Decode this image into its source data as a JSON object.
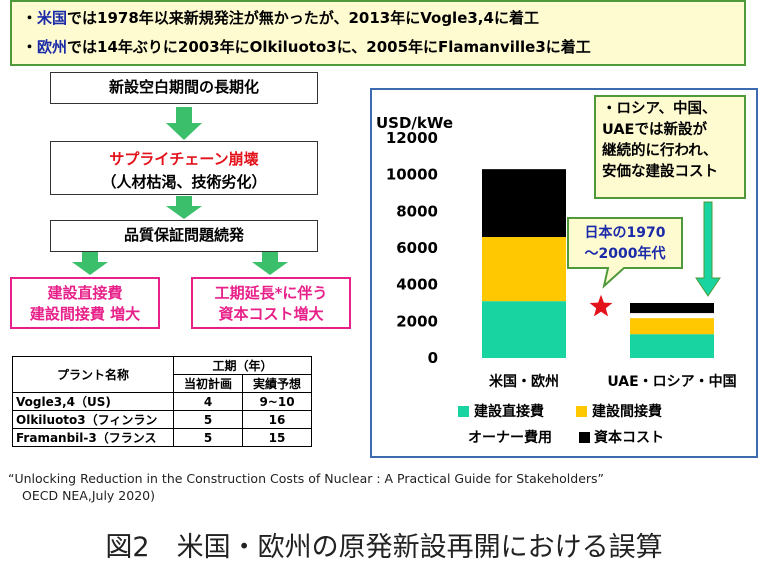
{
  "top_box": {
    "line1": {
      "pre": "・",
      "kw": "米国",
      "rest": "では1978年以来新規発注が無かったが、2013年にVogle3,4に着工"
    },
    "line2": {
      "pre": "・",
      "kw": "欧州",
      "rest": "では14年ぶりに2003年にOlkiluoto3に、2005年にFlamanville3に着工"
    }
  },
  "flow": {
    "step1": "新設空白期間の長期化",
    "step2_red": "サプライチェーン崩壊",
    "step2_sub": "（人材枯渇、技術劣化）",
    "step3": "品質保証問題続発",
    "left_line1": "建設直接費",
    "left_line2": "建設間接費 増大",
    "right_line1": "工期延長*に伴う",
    "right_line2": "資本コスト増大"
  },
  "table": {
    "col_plant": "プラント名称",
    "col_period": "工期（年）",
    "col_plan": "当初計画",
    "col_actual": "実績予想",
    "rows": [
      {
        "name": "Vogle3,4（US)",
        "plan": "4",
        "actual": "9~10"
      },
      {
        "name": "Olkiluoto3（フィンラン",
        "plan": "5",
        "actual": "16"
      },
      {
        "name": "Framanbil-3（フランス",
        "plan": "5",
        "actual": "15"
      }
    ]
  },
  "callout": {
    "line1": "・ロシア、中国、",
    "line2": "UAEでは新設が",
    "line3": "継続的に行われ、",
    "line4": "安価な建設コスト"
  },
  "chart_data": {
    "type": "bar",
    "stacked": true,
    "ylabel": "USD/kWe",
    "ylim": [
      0,
      12000
    ],
    "yticks": [
      0,
      2000,
      4000,
      6000,
      8000,
      10000,
      12000
    ],
    "categories": [
      "米国・欧州",
      "UAE・ロシア・中国"
    ],
    "series": [
      {
        "name": "建設直接費",
        "color": "#17d4a0",
        "values": [
          3100,
          1300
        ]
      },
      {
        "name": "建設間接費",
        "color": "#ffc800",
        "values": [
          3500,
          900
        ]
      },
      {
        "name": "オーナー費用",
        "color": "#ffffff",
        "values": [
          0,
          250
        ]
      },
      {
        "name": "資本コスト",
        "color": "#000000",
        "values": [
          3700,
          550
        ]
      }
    ],
    "japan_marker": {
      "label_line1": "日本の1970",
      "label_line2": "～2000年代",
      "value": 2800,
      "color": "#e3121b"
    },
    "grid": false,
    "legend": "bottom"
  },
  "reference": {
    "line1": "“Unlocking Reduction in the Construction Costs of Nuclear : A Practical Guide for Stakeholders”",
    "line2": "OECD  NEA,July 2020)"
  },
  "caption": "図2　米国・欧州の原発新設再開における誤算",
  "colors": {
    "accent_green": "#3bbf6a",
    "box_border": "#4e9a3a",
    "callout_bg": "#fffbd0",
    "pink": "#e8208a"
  }
}
